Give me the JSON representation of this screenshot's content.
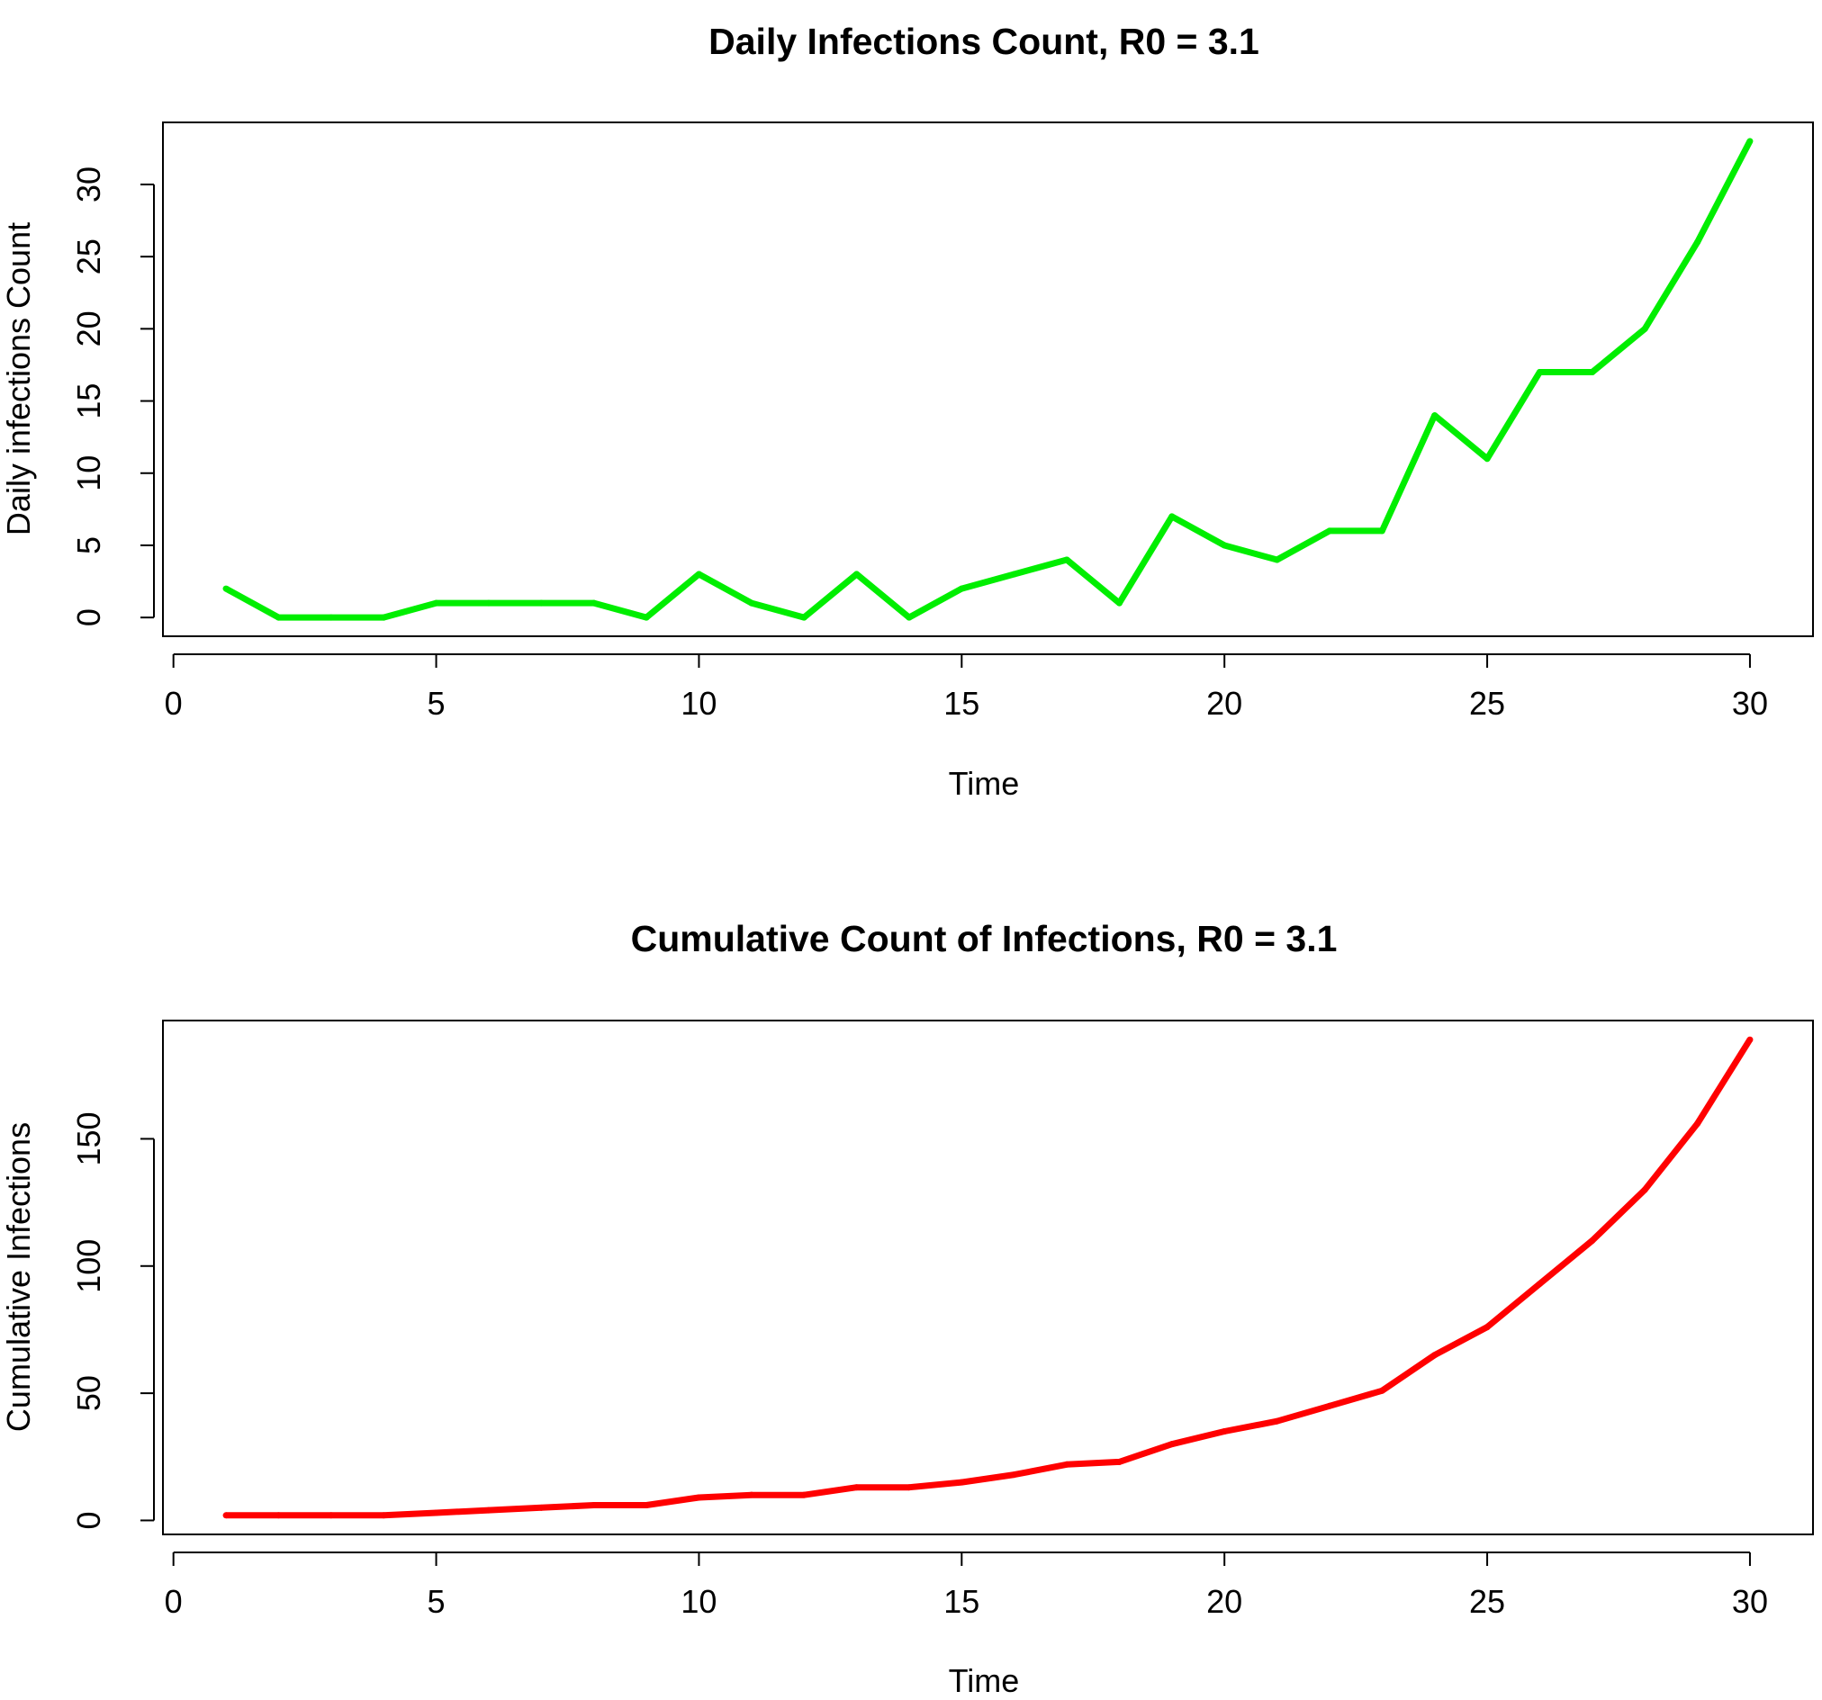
{
  "chart_data": [
    {
      "type": "line",
      "title": "Daily Infections Count, R0 = 3.1",
      "xlabel": "Time",
      "ylabel": "Daily infections Count",
      "xticks": [
        "0",
        "5",
        "10",
        "15",
        "20",
        "25",
        "30"
      ],
      "yticks": [
        "0",
        "5",
        "10",
        "15",
        "20",
        "25",
        "30"
      ],
      "xlim": [
        -0.2,
        31.2
      ],
      "ylim": [
        -1.3,
        34.3
      ],
      "grid": false,
      "color": "#00ee00",
      "x": [
        1,
        2,
        3,
        4,
        5,
        6,
        7,
        8,
        9,
        10,
        11,
        12,
        13,
        14,
        15,
        16,
        17,
        18,
        19,
        20,
        21,
        22,
        23,
        24,
        25,
        26,
        27,
        28,
        29,
        30
      ],
      "series": [
        {
          "values": [
            2,
            0,
            0,
            0,
            1,
            1,
            1,
            1,
            0,
            3,
            1,
            0,
            3,
            0,
            2,
            3,
            4,
            1,
            7,
            5,
            4,
            6,
            6,
            14,
            11,
            17,
            17,
            20,
            26,
            33
          ]
        }
      ]
    },
    {
      "type": "line",
      "title": "Cumulative Count of Infections, R0 = 3.1",
      "xlabel": "Time",
      "ylabel": "Cumulative Infections",
      "xticks": [
        "0",
        "5",
        "10",
        "15",
        "20",
        "25",
        "30"
      ],
      "yticks": [
        "0",
        "50",
        "100",
        "150"
      ],
      "xlim": [
        -0.2,
        31.2
      ],
      "ylim": [
        -5.5,
        196.5
      ],
      "grid": false,
      "color": "#ff0000",
      "x": [
        1,
        2,
        3,
        4,
        5,
        6,
        7,
        8,
        9,
        10,
        11,
        12,
        13,
        14,
        15,
        16,
        17,
        18,
        19,
        20,
        21,
        22,
        23,
        24,
        25,
        26,
        27,
        28,
        29,
        30
      ],
      "series": [
        {
          "values": [
            2,
            2,
            2,
            2,
            3,
            4,
            5,
            6,
            6,
            9,
            10,
            10,
            13,
            13,
            15,
            18,
            22,
            23,
            30,
            35,
            39,
            45,
            51,
            65,
            76,
            93,
            110,
            130,
            156,
            189
          ]
        }
      ]
    }
  ]
}
